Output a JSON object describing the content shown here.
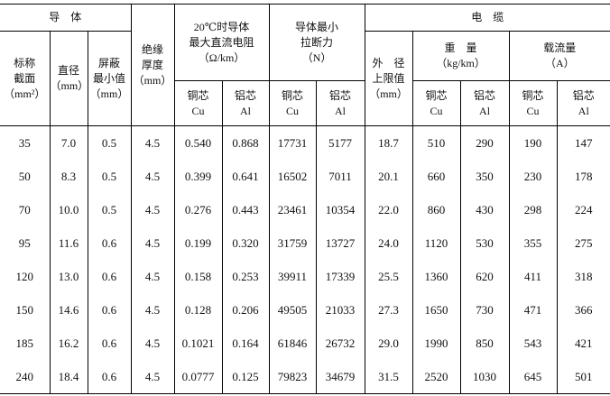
{
  "header": {
    "conductor": [
      "导　体"
    ],
    "insulation": [
      "绝缘",
      "厚度",
      "（mm）"
    ],
    "resistance": [
      "20℃时导体",
      "最大直流电阻",
      "（Ω/km）"
    ],
    "tensile": [
      "导体最小",
      "拉断力",
      "（N）"
    ],
    "cable": [
      "电　缆"
    ],
    "section": [
      "标称",
      "截面",
      "（mm²）"
    ],
    "diameter": [
      "直径",
      "（mm）"
    ],
    "shield": [
      "屏蔽",
      "最小值",
      "（mm）"
    ],
    "outer": [
      "外　径",
      "上限值",
      "（mm）"
    ],
    "weight": [
      "重　量",
      "（kg/km）"
    ],
    "current": [
      "载流量",
      "（A）"
    ],
    "resistance_cu": [
      "铜芯",
      "Cu"
    ],
    "resistance_al": [
      "铝芯",
      "Al"
    ],
    "tensile_cu": [
      "铜芯",
      "Cu"
    ],
    "tensile_al": [
      "铝芯",
      "Al"
    ],
    "weight_cu": [
      "铜芯",
      "Cu"
    ],
    "weight_al": [
      "铝芯",
      "Al"
    ],
    "current_cu": [
      "铜芯",
      "Cu"
    ],
    "current_al": [
      "铝芯",
      "Al"
    ]
  },
  "table": {
    "rows": [
      [
        "35",
        "7.0",
        "0.5",
        "4.5",
        "0.540",
        "0.868",
        "17731",
        "5177",
        "18.7",
        "510",
        "290",
        "190",
        "147"
      ],
      [
        "50",
        "8.3",
        "0.5",
        "4.5",
        "0.399",
        "0.641",
        "16502",
        "7011",
        "20.1",
        "660",
        "350",
        "230",
        "178"
      ],
      [
        "70",
        "10.0",
        "0.5",
        "4.5",
        "0.276",
        "0.443",
        "23461",
        "10354",
        "22.0",
        "860",
        "430",
        "298",
        "224"
      ],
      [
        "95",
        "11.6",
        "0.6",
        "4.5",
        "0.199",
        "0.320",
        "31759",
        "13727",
        "24.0",
        "1120",
        "530",
        "355",
        "275"
      ],
      [
        "120",
        "13.0",
        "0.6",
        "4.5",
        "0.158",
        "0.253",
        "39911",
        "17339",
        "25.5",
        "1360",
        "620",
        "411",
        "318"
      ],
      [
        "150",
        "14.6",
        "0.6",
        "4.5",
        "0.128",
        "0.206",
        "49505",
        "21033",
        "27.3",
        "1650",
        "730",
        "471",
        "366"
      ],
      [
        "185",
        "16.2",
        "0.6",
        "4.5",
        "0.1021",
        "0.164",
        "61846",
        "26732",
        "29.0",
        "1990",
        "850",
        "543",
        "421"
      ],
      [
        "240",
        "18.4",
        "0.6",
        "4.5",
        "0.0777",
        "0.125",
        "79823",
        "34679",
        "31.5",
        "2520",
        "1030",
        "645",
        "501"
      ]
    ]
  }
}
